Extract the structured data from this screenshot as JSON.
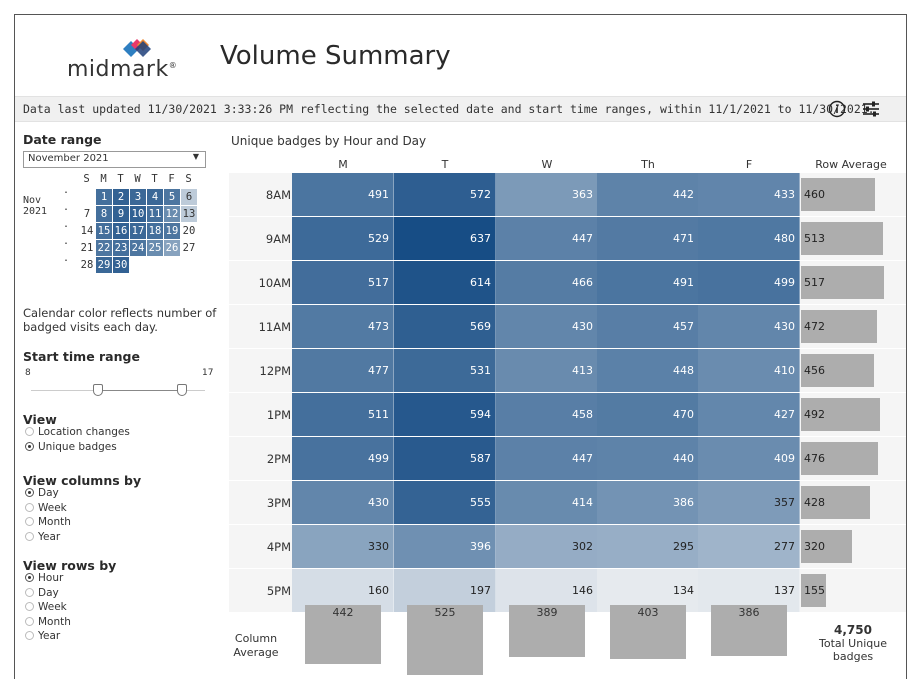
{
  "header": {
    "logo_text": "midmark",
    "logo_reg": "®",
    "title": "Volume Summary",
    "info": "Data last updated 11/30/2021 3:33:26 PM reflecting the selected date and start time ranges, within 11/1/2021 to 11/30/2021."
  },
  "sidebar": {
    "date_range_label": "Date range",
    "month_select": "November 2021",
    "calendar": {
      "month_label": "Nov",
      "year_label": "2021",
      "dow": [
        "S",
        "M",
        "T",
        "W",
        "T",
        "F",
        "S"
      ],
      "weeks": [
        [
          "",
          "1",
          "2",
          "3",
          "4",
          "5",
          "6"
        ],
        [
          "7",
          "8",
          "9",
          "10",
          "11",
          "12",
          "13"
        ],
        [
          "14",
          "15",
          "16",
          "17",
          "18",
          "19",
          "20"
        ],
        [
          "21",
          "22",
          "23",
          "24",
          "25",
          "26",
          "27"
        ],
        [
          "28",
          "29",
          "30",
          "",
          "",
          "",
          ""
        ]
      ]
    },
    "calendar_note": "Calendar color reflects number of badged visits each day.",
    "start_time_label": "Start time range",
    "start_time_min": "8",
    "start_time_max": "17",
    "view_label": "View",
    "view_options": [
      "Location changes",
      "Unique badges"
    ],
    "view_selected": "Unique badges",
    "columns_label": "View columns by",
    "columns_options": [
      "Day",
      "Week",
      "Month",
      "Year"
    ],
    "columns_selected": "Day",
    "rows_label": "View rows by",
    "rows_options": [
      "Hour",
      "Day",
      "Week",
      "Month",
      "Year"
    ],
    "rows_selected": "Hour"
  },
  "chart_data": {
    "type": "heatmap",
    "title": "Unique badges by Hour and Day",
    "columns": [
      "M",
      "T",
      "W",
      "Th",
      "F"
    ],
    "rows": [
      "8AM",
      "9AM",
      "10AM",
      "11AM",
      "12PM",
      "1PM",
      "2PM",
      "3PM",
      "4PM",
      "5PM"
    ],
    "values": [
      [
        491,
        572,
        363,
        442,
        433
      ],
      [
        529,
        637,
        447,
        471,
        480
      ],
      [
        517,
        614,
        466,
        491,
        499
      ],
      [
        473,
        569,
        430,
        457,
        430
      ],
      [
        477,
        531,
        413,
        448,
        410
      ],
      [
        511,
        594,
        458,
        470,
        427
      ],
      [
        499,
        587,
        447,
        440,
        409
      ],
      [
        430,
        555,
        414,
        386,
        357
      ],
      [
        330,
        396,
        302,
        295,
        277
      ],
      [
        160,
        197,
        146,
        134,
        137
      ]
    ],
    "row_average_label": "Row Average",
    "row_average": [
      460,
      513,
      517,
      472,
      456,
      492,
      476,
      428,
      320,
      155
    ],
    "column_average_label": "Column Average",
    "column_average": [
      442,
      525,
      389,
      403,
      386
    ],
    "total_value": "4,750",
    "total_label": "Total Unique badges"
  },
  "colors": {
    "heat_low": "#e6eaee",
    "heat_high": "#174d85",
    "bar_gray": "#adadad"
  }
}
